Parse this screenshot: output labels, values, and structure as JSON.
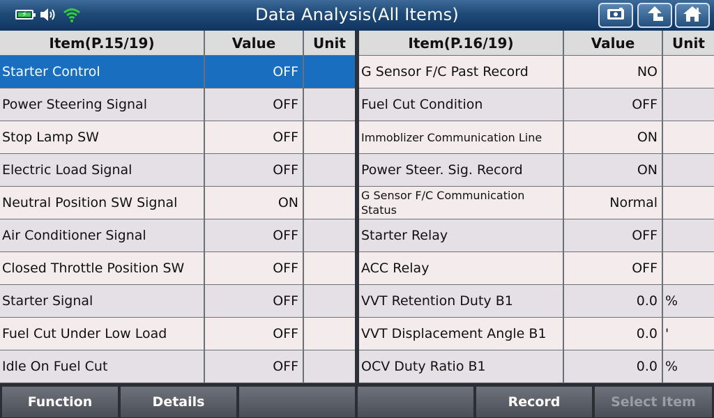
{
  "header": {
    "title": "Data Analysis(All Items)",
    "icons": [
      "battery-charging-icon",
      "speaker-icon",
      "wifi-icon",
      "camera-screenshot-icon",
      "back-arrow-icon",
      "home-icon"
    ],
    "accent": "#1a6ec0",
    "wifi_color": "#2fd12f"
  },
  "left_table": {
    "headers": {
      "item": "Item(P.15/19)",
      "value": "Value",
      "unit": "Unit"
    },
    "selected_index": 0,
    "rows": [
      {
        "item": "Starter Control",
        "value": "OFF",
        "unit": ""
      },
      {
        "item": "Power Steering Signal",
        "value": "OFF",
        "unit": ""
      },
      {
        "item": "Stop Lamp SW",
        "value": "OFF",
        "unit": ""
      },
      {
        "item": "Electric Load Signal",
        "value": "OFF",
        "unit": ""
      },
      {
        "item": "Neutral Position SW Signal",
        "value": "ON",
        "unit": ""
      },
      {
        "item": "Air Conditioner Signal",
        "value": "OFF",
        "unit": ""
      },
      {
        "item": "Closed Throttle Position SW",
        "value": "OFF",
        "unit": ""
      },
      {
        "item": "Starter Signal",
        "value": "OFF",
        "unit": ""
      },
      {
        "item": "Fuel Cut Under Low Load",
        "value": "OFF",
        "unit": ""
      },
      {
        "item": "Idle On Fuel Cut",
        "value": "OFF",
        "unit": ""
      }
    ]
  },
  "right_table": {
    "headers": {
      "item": "Item(P.16/19)",
      "value": "Value",
      "unit": "Unit"
    },
    "rows": [
      {
        "item": "G Sensor F/C Past Record",
        "value": "NO",
        "unit": ""
      },
      {
        "item": "Fuel Cut Condition",
        "value": "OFF",
        "unit": ""
      },
      {
        "item": "Immoblizer Communication Line",
        "value": "ON",
        "unit": ""
      },
      {
        "item": "Power Steer. Sig. Record",
        "value": "ON",
        "unit": ""
      },
      {
        "item": "G Sensor F/C Communication Status",
        "value": "Normal",
        "unit": ""
      },
      {
        "item": "Starter Relay",
        "value": "OFF",
        "unit": ""
      },
      {
        "item": "ACC Relay",
        "value": "OFF",
        "unit": ""
      },
      {
        "item": "VVT Retention Duty B1",
        "value": "0.0",
        "unit": "%"
      },
      {
        "item": "VVT Displacement Angle B1",
        "value": "0.0",
        "unit": "'"
      },
      {
        "item": "OCV Duty Ratio B1",
        "value": "0.0",
        "unit": "%"
      }
    ]
  },
  "footer": {
    "buttons": [
      {
        "label": "Function",
        "enabled": true
      },
      {
        "label": "Details",
        "enabled": true
      },
      {
        "label": "",
        "enabled": true
      },
      {
        "label": "",
        "enabled": true
      },
      {
        "label": "Record",
        "enabled": true
      },
      {
        "label": "Select Item",
        "enabled": false
      }
    ]
  }
}
